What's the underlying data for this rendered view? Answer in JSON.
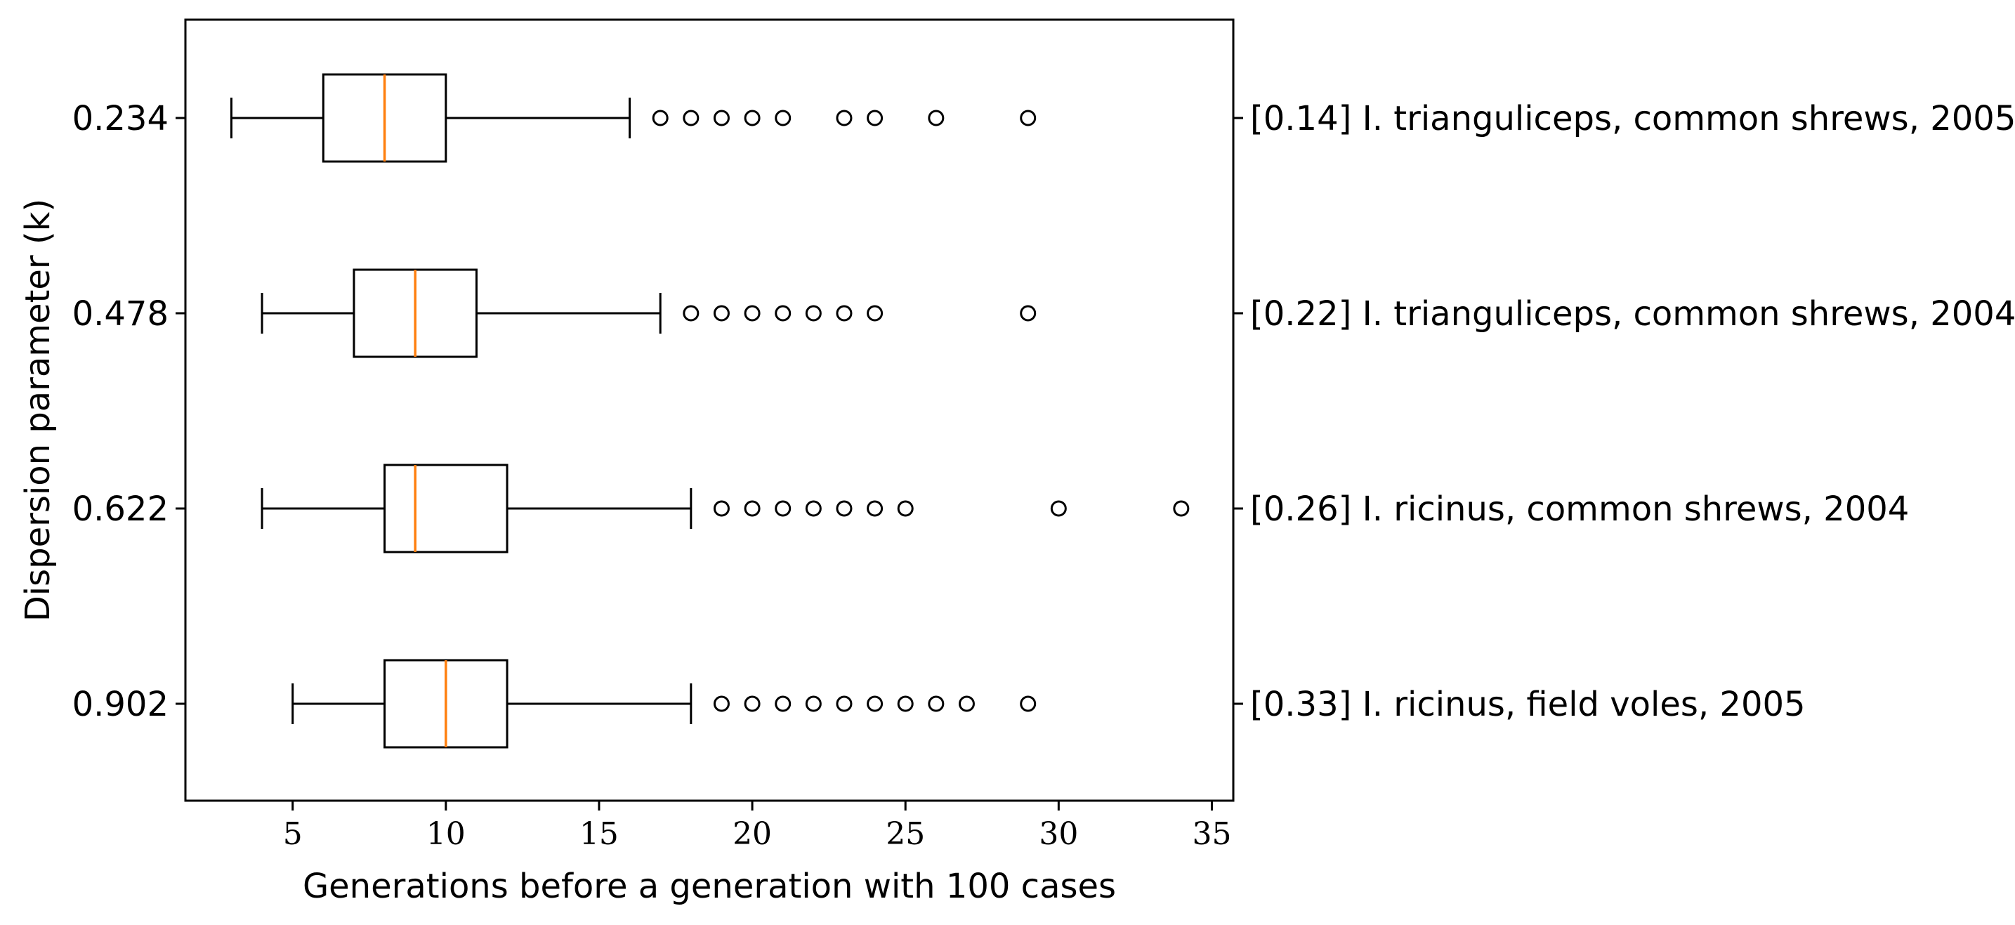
{
  "chart_data": {
    "type": "boxplot",
    "orientation": "horizontal",
    "xlabel": "Generations before a generation with 100 cases",
    "ylabel": "Dispersion parameter (k)",
    "xlim": [
      1.5,
      35.7
    ],
    "xticks": [
      5,
      10,
      15,
      20,
      25,
      30,
      35
    ],
    "grid": false,
    "colors": {
      "box": "#000000",
      "median": "#ff7f0e",
      "frame": "#000000",
      "background": "#ffffff"
    },
    "boxes": [
      {
        "k_label": "0.234",
        "right_label": "[0.14] I. trianguliceps, common shrews, 2005",
        "whisker_low": 3,
        "q1": 6,
        "median": 8,
        "q3": 10,
        "whisker_high": 16,
        "outliers": [
          17,
          18,
          19,
          20,
          21,
          23,
          24,
          26,
          29
        ]
      },
      {
        "k_label": "0.478",
        "right_label": "[0.22] I. trianguliceps, common shrews, 2004",
        "whisker_low": 4,
        "q1": 7,
        "median": 9,
        "q3": 11,
        "whisker_high": 17,
        "outliers": [
          18,
          19,
          20,
          21,
          22,
          23,
          24,
          29
        ]
      },
      {
        "k_label": "0.622",
        "right_label": "[0.26] I. ricinus, common shrews, 2004",
        "whisker_low": 4,
        "q1": 8,
        "median": 9,
        "q3": 12,
        "whisker_high": 18,
        "outliers": [
          19,
          20,
          21,
          22,
          23,
          24,
          25,
          30,
          34
        ]
      },
      {
        "k_label": "0.902",
        "right_label": "[0.33] I. ricinus, field voles, 2005",
        "whisker_low": 5,
        "q1": 8,
        "median": 10,
        "q3": 12,
        "whisker_high": 18,
        "outliers": [
          19,
          20,
          21,
          22,
          23,
          24,
          25,
          26,
          27,
          29
        ]
      }
    ]
  }
}
